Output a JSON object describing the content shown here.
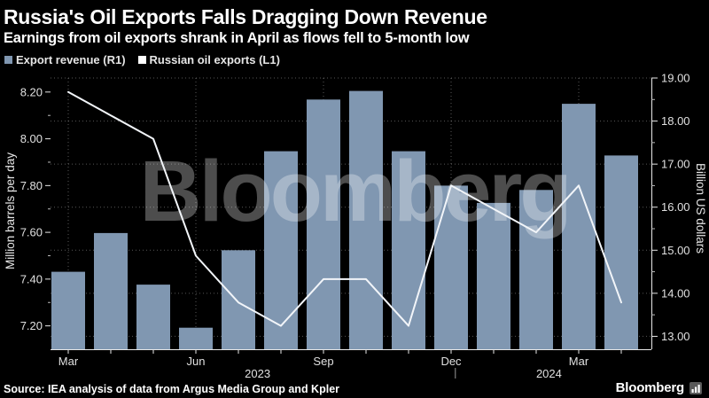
{
  "header": {
    "title": "Russia's Oil Exports Falls Dragging Down Revenue",
    "subtitle": "Earnings from oil exports shrank in April as flows fell to 5-month low"
  },
  "legend": [
    {
      "label": "Export revenue (R1)",
      "color": "#8097b1"
    },
    {
      "label": "Russian oil exports (L1)",
      "color": "#ffffff"
    }
  ],
  "chart_data": {
    "type": "bar+line",
    "categories": [
      "Mar 2023",
      "Apr 2023",
      "May 2023",
      "Jun 2023",
      "Jul 2023",
      "Aug 2023",
      "Sep 2023",
      "Oct 2023",
      "Nov 2023",
      "Dec 2023",
      "Jan 2024",
      "Feb 2024",
      "Mar 2024",
      "Apr 2024"
    ],
    "series": [
      {
        "name": "Export revenue (R1)",
        "type": "bar",
        "axis": "right",
        "unit": "Billion US dollars",
        "color": "#8097b1",
        "values": [
          14.5,
          15.4,
          14.2,
          13.2,
          15.0,
          17.3,
          18.5,
          18.7,
          17.3,
          16.5,
          16.1,
          16.4,
          18.4,
          17.2
        ]
      },
      {
        "name": "Russian oil exports (L1)",
        "type": "line",
        "axis": "left",
        "unit": "Million barrels per day",
        "color": "#f2f5f9",
        "values": [
          8.2,
          8.1,
          8.0,
          7.5,
          7.3,
          7.2,
          7.4,
          7.4,
          7.2,
          7.8,
          7.7,
          7.6,
          7.8,
          7.3
        ]
      }
    ],
    "left_axis": {
      "title": "Million barrels per day",
      "min": 7.1,
      "max": 8.26,
      "major_ticks": [
        7.2,
        7.4,
        7.6,
        7.8,
        8.0,
        8.2
      ],
      "minor_ticks": [
        7.3,
        7.5,
        7.7,
        7.9,
        8.1
      ]
    },
    "right_axis": {
      "title": "Billion US dollars",
      "min": 12.7,
      "max": 19.0,
      "major_ticks": [
        13.0,
        14.0,
        15.0,
        16.0,
        17.0,
        18.0,
        19.0
      ],
      "minor_ticks": [
        13.5,
        14.5,
        15.5,
        16.5,
        17.5,
        18.5
      ]
    },
    "x_axis": {
      "major_tick_indices": [
        0,
        3,
        6,
        9,
        12
      ],
      "major_tick_labels": [
        "Mar",
        "Jun",
        "Sep",
        "Dec",
        "Mar"
      ],
      "years": [
        {
          "label": "2023",
          "center_index": 4.45
        },
        {
          "label": "2024",
          "center_index": 11.3
        }
      ],
      "divider_index": 9.1
    },
    "gridlines": {
      "horizontal": "right-axis-majors",
      "vertical": "x-axis-majors",
      "color": "rgba(255,255,255,0.34)"
    },
    "watermark": {
      "text": "Bloomberg",
      "opacity": 0.3
    },
    "colors": {
      "background": "#000000",
      "axis": "#e8e8e8",
      "tick_label": "#e0e0e0"
    }
  },
  "footer": {
    "source": "Source: IEA analysis of data from Argus Media Group and Kpler",
    "brand": "Bloomberg"
  }
}
